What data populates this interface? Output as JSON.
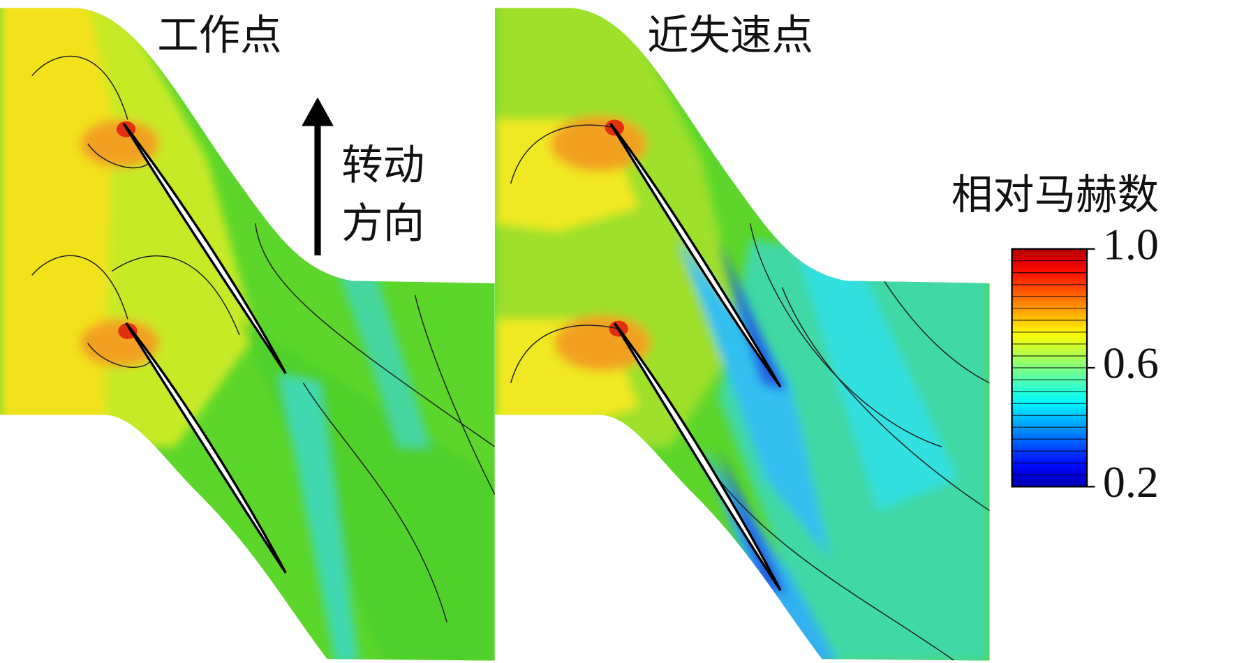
{
  "panels": [
    {
      "title": "工作点"
    },
    {
      "title": "近失速点"
    }
  ],
  "rotation_label": [
    "转动",
    "方向"
  ],
  "colorbar": {
    "title": "相对马赫数",
    "lim": [
      0.2,
      1
    ],
    "ticks": [
      {
        "value": 1,
        "label": "1.0"
      },
      0.6,
      0.2
    ]
  }
}
